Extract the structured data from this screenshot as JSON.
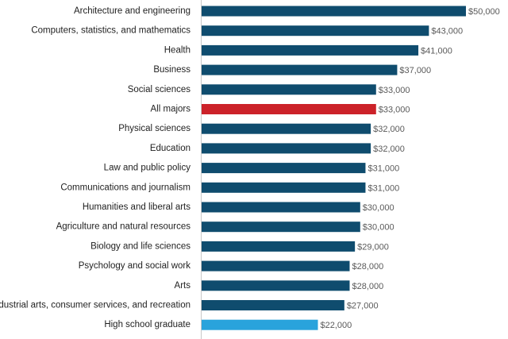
{
  "chart_data": {
    "type": "bar",
    "orientation": "horizontal",
    "categories": [
      "Architecture and engineering",
      "Computers, statistics, and mathematics",
      "Health",
      "Business",
      "Social sciences",
      "All majors",
      "Physical sciences",
      "Education",
      "Law and public policy",
      "Communications and journalism",
      "Humanities and liberal arts",
      "Agriculture and natural resources",
      "Biology and life sciences",
      "Psychology and social work",
      "Arts",
      "Industrial arts, consumer services, and recreation",
      "High school graduate"
    ],
    "values": [
      50000,
      43000,
      41000,
      37000,
      33000,
      33000,
      32000,
      32000,
      31000,
      31000,
      30000,
      30000,
      29000,
      28000,
      28000,
      27000,
      22000
    ],
    "value_labels": [
      "$50,000",
      "$43,000",
      "$41,000",
      "$37,000",
      "$33,000",
      "$33,000",
      "$32,000",
      "$32,000",
      "$31,000",
      "$31,000",
      "$30,000",
      "$30,000",
      "$29,000",
      "$28,000",
      "$28,000",
      "$27,000",
      "$22,000"
    ],
    "bar_colors": [
      "#0f4c6e",
      "#0f4c6e",
      "#0f4c6e",
      "#0f4c6e",
      "#0f4c6e",
      "#cc2229",
      "#0f4c6e",
      "#0f4c6e",
      "#0f4c6e",
      "#0f4c6e",
      "#0f4c6e",
      "#0f4c6e",
      "#0f4c6e",
      "#0f4c6e",
      "#0f4c6e",
      "#0f4c6e",
      "#29a3dc"
    ],
    "xlim": [
      0,
      50000
    ],
    "title": "",
    "xlabel": "",
    "ylabel": "",
    "grid": false,
    "legend": "none"
  }
}
